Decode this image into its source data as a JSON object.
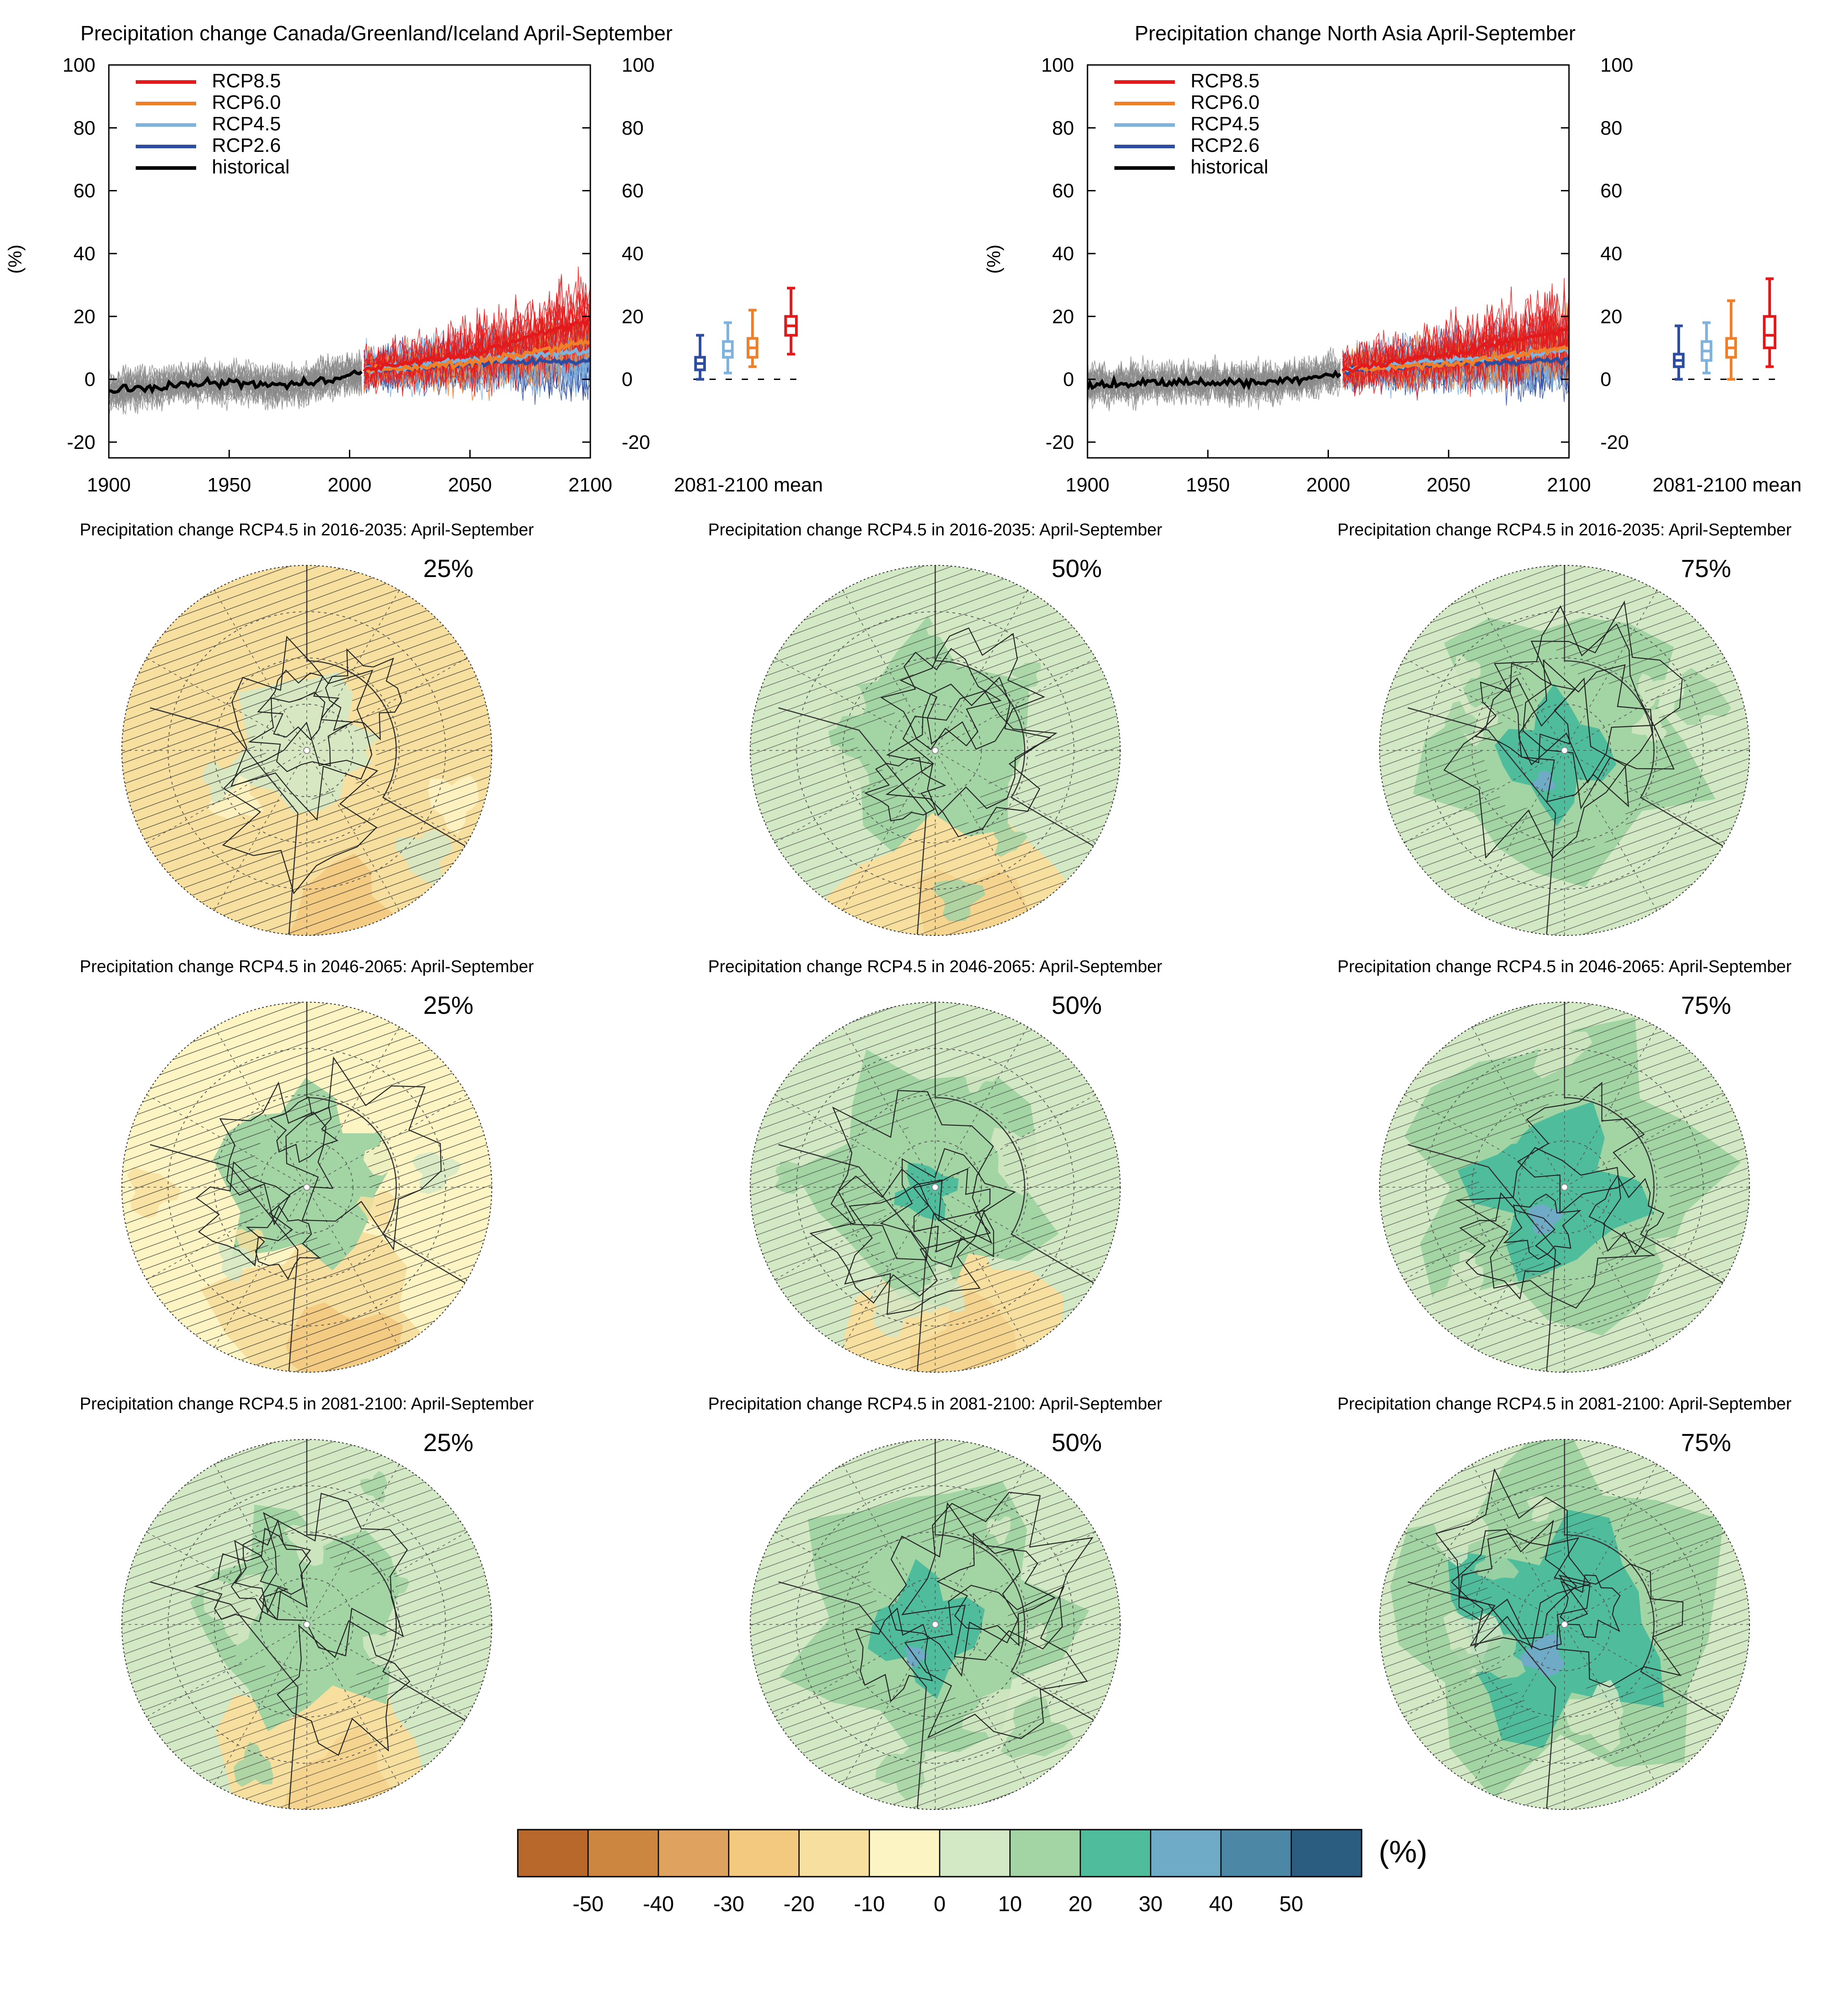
{
  "colors": {
    "rcp85": "#e31a1c",
    "rcp60": "#f07f2a",
    "rcp45": "#7fb2dd",
    "rcp26": "#2f4da0",
    "historical": "#000000",
    "ensemble": "#8a8a8a"
  },
  "chart_data": [
    {
      "type": "line",
      "title": "Precipitation change Canada/Greenland/Iceland April-September",
      "ylabel": "(%)",
      "xlim": [
        1900,
        2100
      ],
      "ylim": [
        -25,
        100
      ],
      "x_ticks": [
        1900,
        1950,
        2000,
        2050,
        2100
      ],
      "y_ticks": [
        -20,
        0,
        20,
        40,
        60,
        80,
        100
      ],
      "legend": [
        "RCP8.5",
        "RCP6.0",
        "RCP4.5",
        "RCP2.6",
        "historical"
      ],
      "legend_position": "top-left",
      "series": [
        {
          "name": "historical",
          "x": [
            1900,
            1925,
            1950,
            1975,
            2005
          ],
          "values": [
            -4,
            -2,
            -1,
            -2,
            2
          ]
        },
        {
          "name": "RCP2.6",
          "x": [
            2006,
            2050,
            2100
          ],
          "values": [
            3,
            5,
            6
          ]
        },
        {
          "name": "RCP4.5",
          "x": [
            2006,
            2050,
            2100
          ],
          "values": [
            3,
            6,
            9
          ]
        },
        {
          "name": "RCP6.0",
          "x": [
            2006,
            2050,
            2100
          ],
          "values": [
            3,
            5,
            12
          ]
        },
        {
          "name": "RCP8.5",
          "x": [
            2006,
            2050,
            2100
          ],
          "values": [
            3,
            8,
            19
          ]
        }
      ],
      "boxplot_label": "2081-2100 mean",
      "boxplots": [
        {
          "name": "RCP2.6",
          "min": 0,
          "q1": 3,
          "median": 5,
          "q3": 7,
          "max": 14
        },
        {
          "name": "RCP4.5",
          "min": 2,
          "q1": 7,
          "median": 9,
          "q3": 12,
          "max": 18
        },
        {
          "name": "RCP6.0",
          "min": 4,
          "q1": 7,
          "median": 10,
          "q3": 13,
          "max": 22
        },
        {
          "name": "RCP8.5",
          "min": 8,
          "q1": 14,
          "median": 17,
          "q3": 20,
          "max": 29
        }
      ]
    },
    {
      "type": "line",
      "title": "Precipitation change North Asia April-September",
      "ylabel": "(%)",
      "xlim": [
        1900,
        2100
      ],
      "ylim": [
        -25,
        100
      ],
      "x_ticks": [
        1900,
        1950,
        2000,
        2050,
        2100
      ],
      "y_ticks": [
        -20,
        0,
        20,
        40,
        60,
        80,
        100
      ],
      "legend": [
        "RCP8.5",
        "RCP6.0",
        "RCP4.5",
        "RCP2.6",
        "historical"
      ],
      "legend_position": "top-left",
      "series": [
        {
          "name": "historical",
          "x": [
            1900,
            1925,
            1950,
            1975,
            2005
          ],
          "values": [
            -2,
            -1,
            -1,
            -1,
            2
          ]
        },
        {
          "name": "RCP2.6",
          "x": [
            2006,
            2050,
            2100
          ],
          "values": [
            3,
            5,
            6
          ]
        },
        {
          "name": "RCP4.5",
          "x": [
            2006,
            2050,
            2100
          ],
          "values": [
            3,
            6,
            9
          ]
        },
        {
          "name": "RCP6.0",
          "x": [
            2006,
            2050,
            2100
          ],
          "values": [
            3,
            5,
            10
          ]
        },
        {
          "name": "RCP8.5",
          "x": [
            2006,
            2050,
            2100
          ],
          "values": [
            3,
            8,
            16
          ]
        }
      ],
      "boxplot_label": "2081-2100 mean",
      "boxplots": [
        {
          "name": "RCP2.6",
          "min": 0,
          "q1": 4,
          "median": 6,
          "q3": 8,
          "max": 17
        },
        {
          "name": "RCP4.5",
          "min": 2,
          "q1": 6,
          "median": 9,
          "q3": 12,
          "max": 18
        },
        {
          "name": "RCP6.0",
          "min": 0,
          "q1": 7,
          "median": 10,
          "q3": 13,
          "max": 25
        },
        {
          "name": "RCP8.5",
          "min": 4,
          "q1": 10,
          "median": 14,
          "q3": 20,
          "max": 32
        }
      ]
    },
    {
      "type": "heatmap",
      "panels": [
        {
          "title": "Precipitation change RCP4.5 in 2016-2035: April-September",
          "percentile": "25%",
          "level": 0
        },
        {
          "title": "Precipitation change RCP4.5 in 2016-2035: April-September",
          "percentile": "50%",
          "level": 1
        },
        {
          "title": "Precipitation change RCP4.5 in 2016-2035: April-September",
          "percentile": "75%",
          "level": 2
        },
        {
          "title": "Precipitation change RCP4.5 in 2046-2065: April-September",
          "percentile": "25%",
          "level": 0.5
        },
        {
          "title": "Precipitation change RCP4.5 in 2046-2065: April-September",
          "percentile": "50%",
          "level": 1.5
        },
        {
          "title": "Precipitation change RCP4.5 in 2046-2065: April-September",
          "percentile": "75%",
          "level": 2.5
        },
        {
          "title": "Precipitation change RCP4.5 in 2081-2100: April-September",
          "percentile": "25%",
          "level": 1
        },
        {
          "title": "Precipitation change RCP4.5 in 2081-2100: April-September",
          "percentile": "50%",
          "level": 2
        },
        {
          "title": "Precipitation change RCP4.5 in 2081-2100: April-September",
          "percentile": "75%",
          "level": 3
        }
      ],
      "colorbar": {
        "labels": [
          "-50",
          "-40",
          "-30",
          "-20",
          "-10",
          "0",
          "10",
          "20",
          "30",
          "40",
          "50"
        ],
        "unit": "(%)",
        "colors": [
          "#b8682a",
          "#cd8640",
          "#e0a35f",
          "#f3c97f",
          "#f7df9f",
          "#fdf4c4",
          "#d3e8c4",
          "#a3d4a4",
          "#4fbd9b",
          "#6faac7",
          "#4c88a6",
          "#2b5d80"
        ]
      }
    }
  ]
}
